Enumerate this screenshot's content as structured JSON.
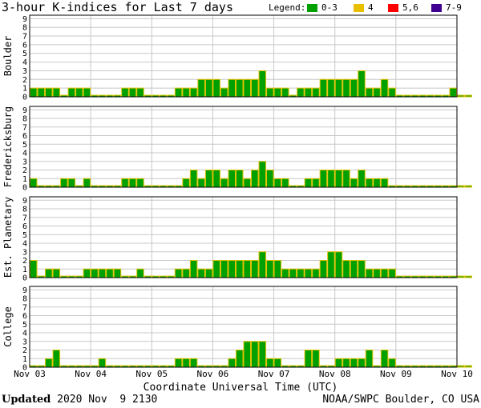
{
  "title": "3-hour K-indices for Last 7 days",
  "legend": {
    "label": "Legend:",
    "items": [
      {
        "label": "0-3",
        "color": "#00a000"
      },
      {
        "label": "4",
        "color": "#e8c000"
      },
      {
        "label": "5,6",
        "color": "#ff0000"
      },
      {
        "label": "7-9",
        "color": "#400090"
      }
    ]
  },
  "footer": {
    "updated_label": "Updated",
    "updated_value": "2020 Nov  9 2130",
    "credit": "NOAA/SWPC Boulder, CO USA"
  },
  "colors": {
    "bar_fill": "#00a000",
    "bar_edge": "#e0c000",
    "grid": "#c8c8c8"
  },
  "chart_data": {
    "type": "bar",
    "title": "3-hour K-indices for Last 7 days",
    "xlabel": "Coordinate Universal Time (UTC)",
    "ylim": [
      0,
      9
    ],
    "yticks": [
      0,
      1,
      2,
      3,
      4,
      5,
      6,
      7,
      8,
      9
    ],
    "xticks": [
      "Nov 03",
      "Nov 04",
      "Nov 05",
      "Nov 06",
      "Nov 07",
      "Nov 08",
      "Nov 09",
      "Nov 10"
    ],
    "interval_hours": 3,
    "grid": true,
    "series": [
      {
        "name": "Boulder",
        "values": [
          1,
          1,
          1,
          1,
          0,
          1,
          1,
          1,
          0,
          0,
          0,
          0,
          1,
          1,
          1,
          0,
          0,
          0,
          0,
          1,
          1,
          1,
          2,
          2,
          2,
          1,
          2,
          2,
          2,
          2,
          3,
          1,
          1,
          1,
          0,
          1,
          1,
          1,
          2,
          2,
          2,
          2,
          2,
          3,
          1,
          1,
          2,
          1,
          0,
          0,
          0,
          0,
          0,
          0,
          0,
          1,
          0,
          0
        ]
      },
      {
        "name": "Fredericksburg",
        "values": [
          1,
          0,
          0,
          0,
          1,
          1,
          0,
          1,
          0,
          0,
          0,
          0,
          1,
          1,
          1,
          0,
          0,
          0,
          0,
          0,
          1,
          2,
          1,
          2,
          2,
          1,
          2,
          2,
          1,
          2,
          3,
          2,
          1,
          1,
          0,
          0,
          1,
          1,
          2,
          2,
          2,
          2,
          1,
          2,
          1,
          1,
          1,
          0,
          0,
          0,
          0,
          0,
          0,
          0,
          0,
          0,
          0,
          0
        ]
      },
      {
        "name": "Est. Planetary",
        "values": [
          2,
          0,
          1,
          1,
          0,
          0,
          0,
          1,
          1,
          1,
          1,
          1,
          0,
          0,
          1,
          0,
          0,
          0,
          0,
          1,
          1,
          2,
          1,
          1,
          2,
          2,
          2,
          2,
          2,
          2,
          3,
          2,
          2,
          1,
          1,
          1,
          1,
          1,
          2,
          3,
          3,
          2,
          2,
          2,
          1,
          1,
          1,
          1,
          0,
          0,
          0,
          0,
          0,
          0,
          0,
          0,
          0,
          0
        ]
      },
      {
        "name": "College",
        "values": [
          0,
          0,
          1,
          2,
          0,
          0,
          0,
          0,
          0,
          1,
          0,
          0,
          0,
          0,
          0,
          0,
          0,
          0,
          0,
          1,
          1,
          1,
          0,
          0,
          0,
          0,
          1,
          2,
          3,
          3,
          3,
          1,
          1,
          0,
          0,
          0,
          2,
          2,
          0,
          0,
          1,
          1,
          1,
          1,
          2,
          0,
          2,
          1,
          0,
          0,
          0,
          0,
          0,
          0,
          0,
          0,
          0,
          0
        ]
      }
    ]
  }
}
